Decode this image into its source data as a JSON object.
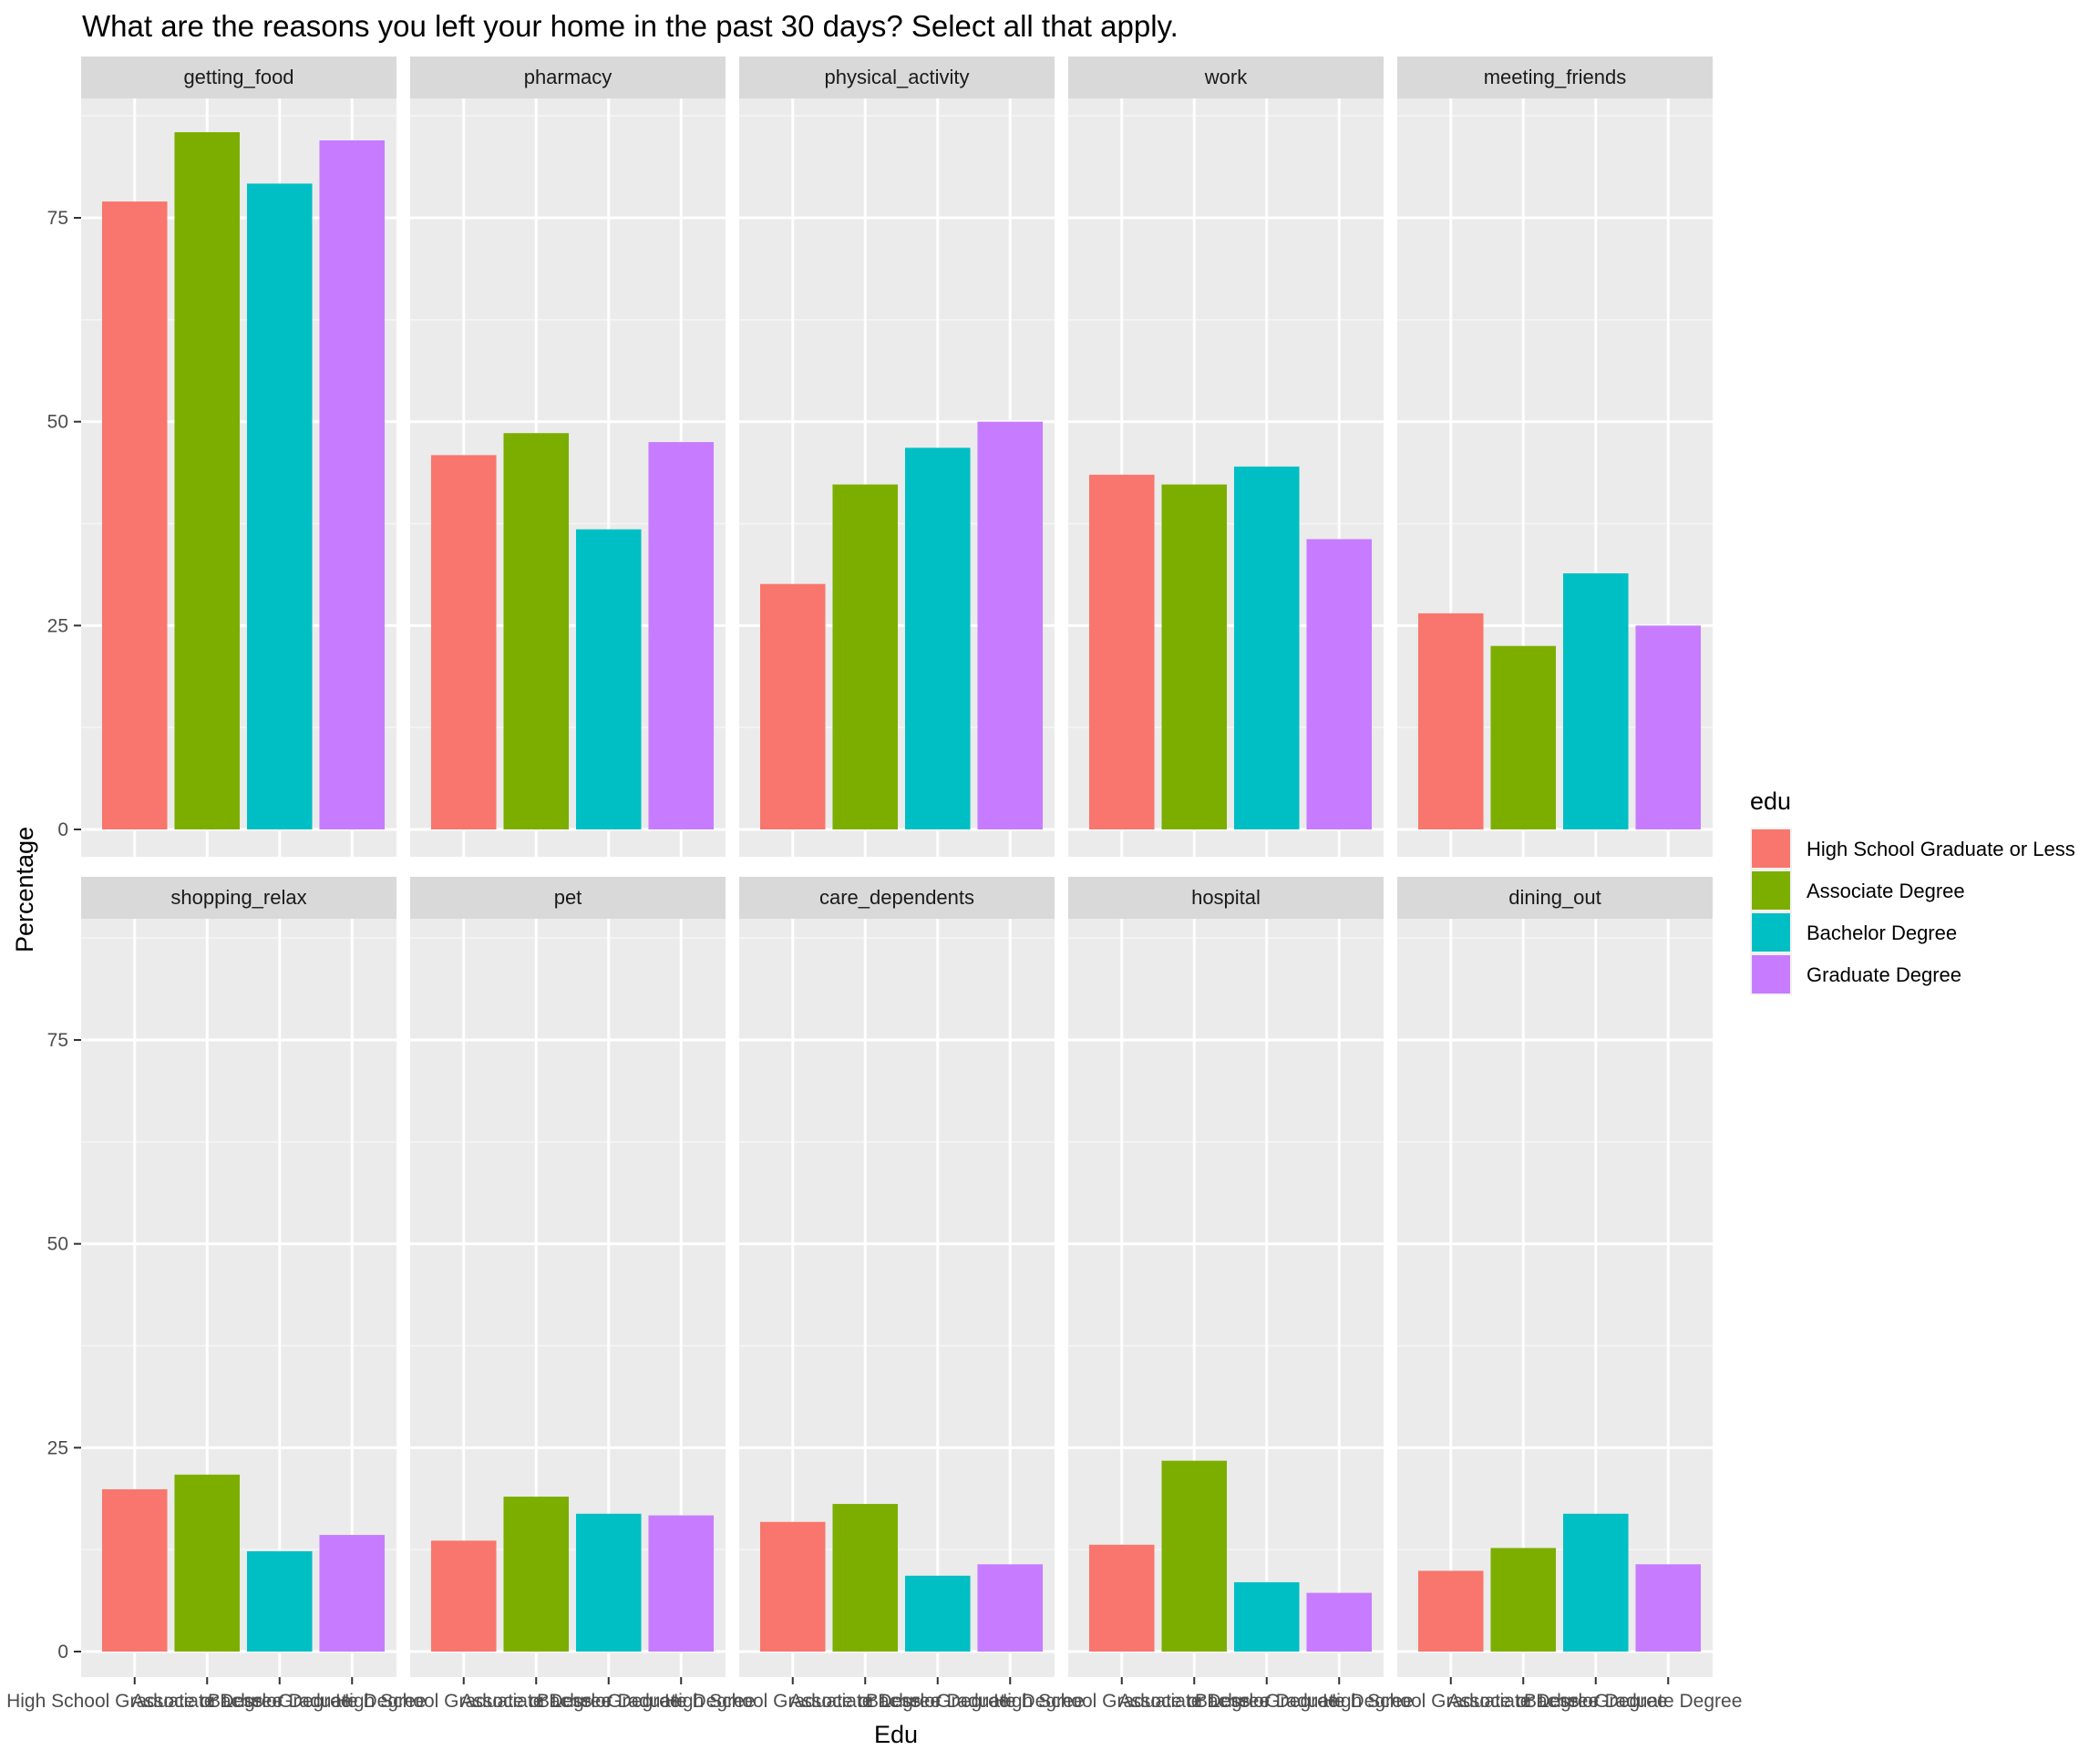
{
  "chart_data": {
    "type": "bar",
    "title": "What are the reasons you left your home in the past 30 days? Select all that apply.",
    "xlabel": "Edu",
    "ylabel": "Percentage",
    "ylim": [
      0,
      90
    ],
    "yticks": [
      0,
      25,
      50,
      75
    ],
    "grid": true,
    "facet_layout": {
      "rows": 2,
      "cols": 5
    },
    "categories": [
      "High School Graduate or Less",
      "Associate Degree",
      "Bachelor Degree",
      "Graduate Degree"
    ],
    "legend": {
      "title": "edu",
      "position": "right",
      "entries": [
        {
          "label": "High School Graduate or Less",
          "color": "#F8766D"
        },
        {
          "label": "Associate Degree",
          "color": "#7CAE00"
        },
        {
          "label": "Bachelor Degree",
          "color": "#00BFC4"
        },
        {
          "label": "Graduate Degree",
          "color": "#C77CFF"
        }
      ]
    },
    "facets": [
      {
        "name": "getting_food",
        "values": [
          77.0,
          85.5,
          79.2,
          84.5
        ]
      },
      {
        "name": "pharmacy",
        "values": [
          45.9,
          48.6,
          36.8,
          47.5
        ]
      },
      {
        "name": "physical_activity",
        "values": [
          30.1,
          42.3,
          46.8,
          50.0
        ]
      },
      {
        "name": "work",
        "values": [
          43.5,
          42.3,
          44.5,
          35.6
        ]
      },
      {
        "name": "meeting_friends",
        "values": [
          26.5,
          22.5,
          31.4,
          25.0
        ]
      },
      {
        "name": "shopping_relax",
        "values": [
          19.9,
          21.7,
          12.3,
          14.3
        ]
      },
      {
        "name": "pet",
        "values": [
          13.6,
          19.0,
          16.9,
          16.7
        ]
      },
      {
        "name": "care_dependents",
        "values": [
          15.9,
          18.1,
          9.3,
          10.7
        ]
      },
      {
        "name": "hospital",
        "values": [
          13.1,
          23.4,
          8.5,
          7.2
        ]
      },
      {
        "name": "dining_out",
        "values": [
          9.9,
          12.7,
          16.9,
          10.7
        ]
      }
    ]
  }
}
